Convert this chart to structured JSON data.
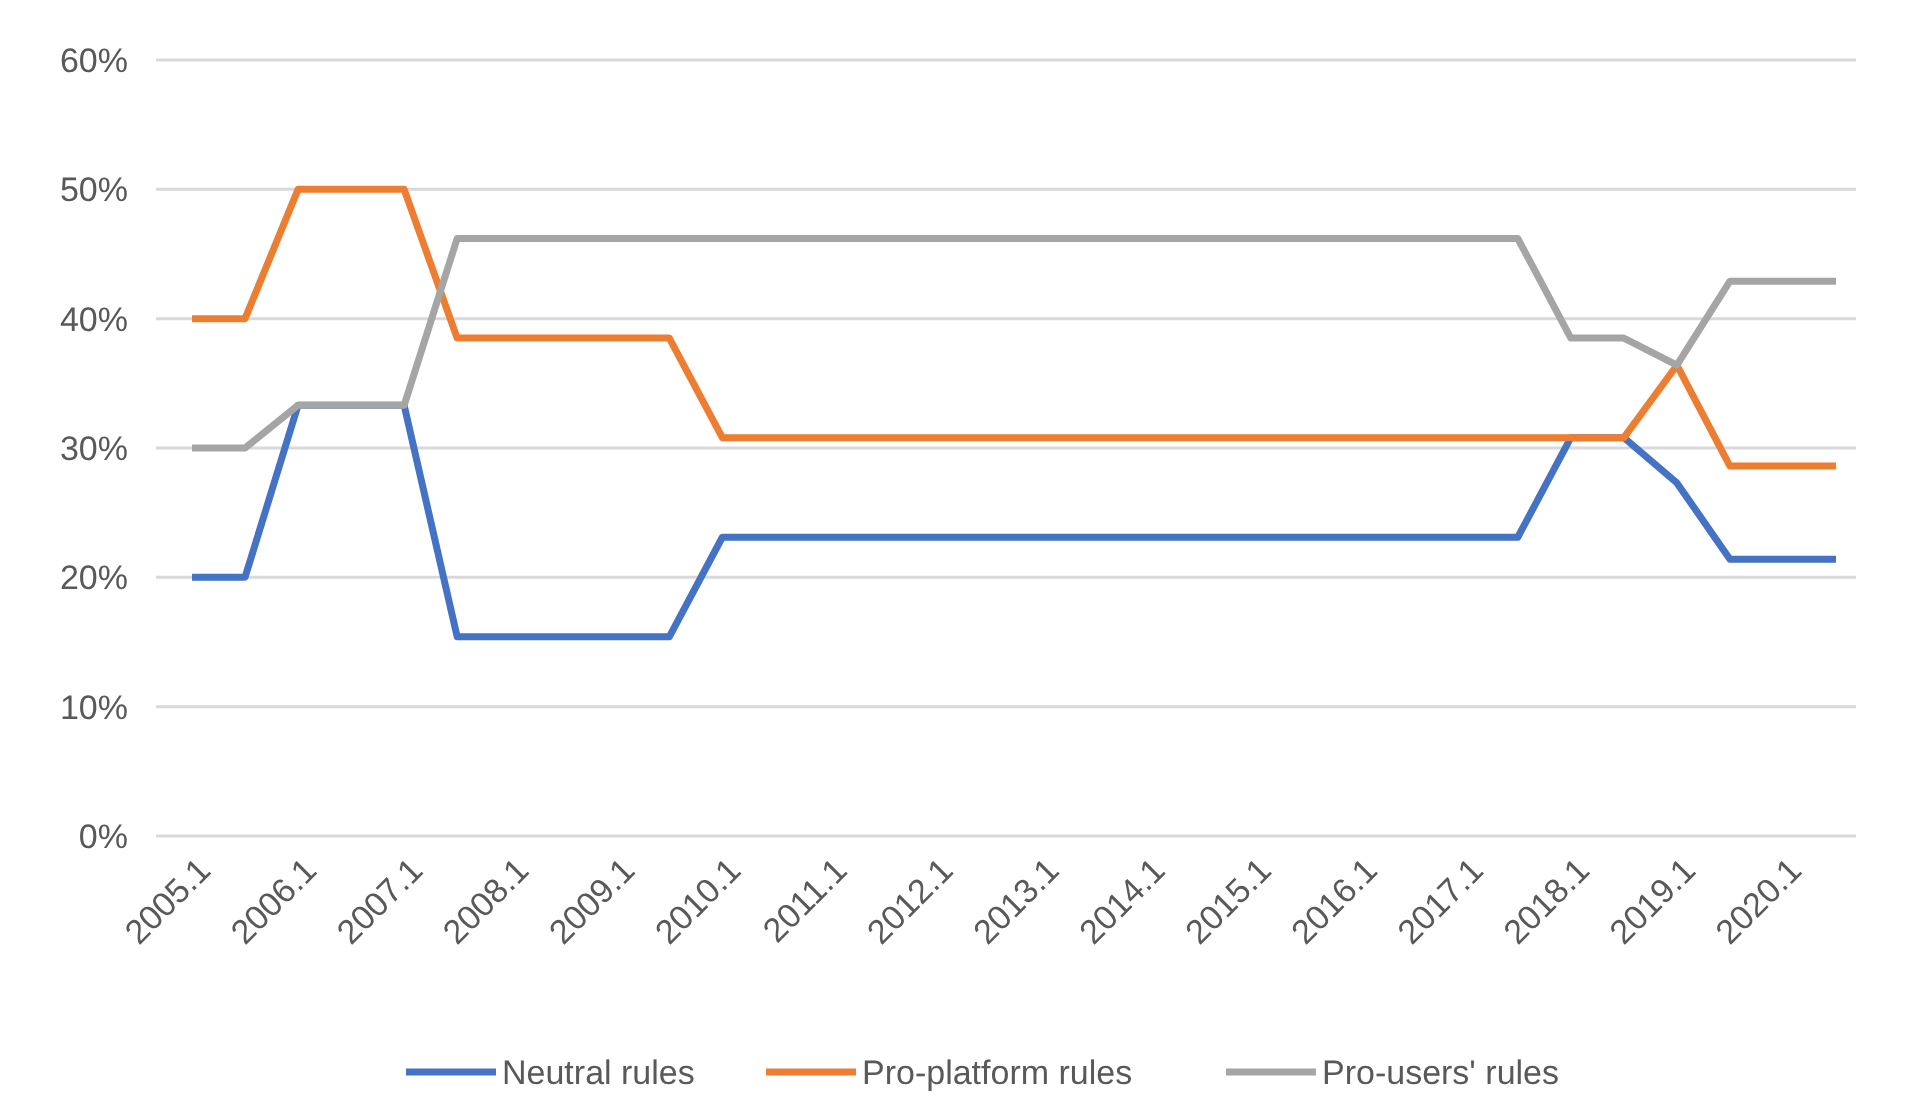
{
  "chart_data": {
    "type": "line",
    "categories": [
      "2005.1",
      null,
      "2006.1",
      null,
      "2007.1",
      null,
      "2008.1",
      null,
      "2009.1",
      null,
      "2010.1",
      null,
      "2011.1",
      null,
      "2012.1",
      null,
      "2013.1",
      null,
      "2014.1",
      null,
      "2015.1",
      null,
      "2016.1",
      null,
      "2017.1",
      null,
      "2018.1",
      null,
      "2019.1",
      null,
      "2020.1",
      null
    ],
    "series": [
      {
        "name": "Neutral rules",
        "color": "#4472c4",
        "values": [
          20,
          20,
          33.3,
          33.3,
          33.3,
          15.4,
          15.4,
          15.4,
          15.4,
          15.4,
          23.1,
          23.1,
          23.1,
          23.1,
          23.1,
          23.1,
          23.1,
          23.1,
          23.1,
          23.1,
          23.1,
          23.1,
          23.1,
          23.1,
          23.1,
          23.1,
          30.8,
          30.8,
          27.3,
          21.4,
          21.4,
          21.4
        ]
      },
      {
        "name": "Pro-platform rules",
        "color": "#ed7d31",
        "values": [
          40,
          40,
          50,
          50,
          50,
          38.5,
          38.5,
          38.5,
          38.5,
          38.5,
          30.8,
          30.8,
          30.8,
          30.8,
          30.8,
          30.8,
          30.8,
          30.8,
          30.8,
          30.8,
          30.8,
          30.8,
          30.8,
          30.8,
          30.8,
          30.8,
          30.8,
          30.8,
          36.4,
          28.6,
          28.6,
          28.6
        ]
      },
      {
        "name": "Pro-users' rules",
        "color": "#a5a5a5",
        "values": [
          30,
          30,
          33.3,
          33.3,
          33.3,
          46.2,
          46.2,
          46.2,
          46.2,
          46.2,
          46.2,
          46.2,
          46.2,
          46.2,
          46.2,
          46.2,
          46.2,
          46.2,
          46.2,
          46.2,
          46.2,
          46.2,
          46.2,
          46.2,
          46.2,
          46.2,
          38.5,
          38.5,
          36.4,
          42.9,
          42.9,
          42.9
        ]
      }
    ],
    "ylim": [
      0,
      60
    ],
    "yticks": [
      {
        "value": 0,
        "label": "0%"
      },
      {
        "value": 10,
        "label": "10%"
      },
      {
        "value": 20,
        "label": "20%"
      },
      {
        "value": 30,
        "label": "30%"
      },
      {
        "value": 40,
        "label": "40%"
      },
      {
        "value": 50,
        "label": "50%"
      },
      {
        "value": 60,
        "label": "60%"
      }
    ],
    "grid": "y",
    "legend": "bottom",
    "marker": "none",
    "line_style": "solid"
  }
}
